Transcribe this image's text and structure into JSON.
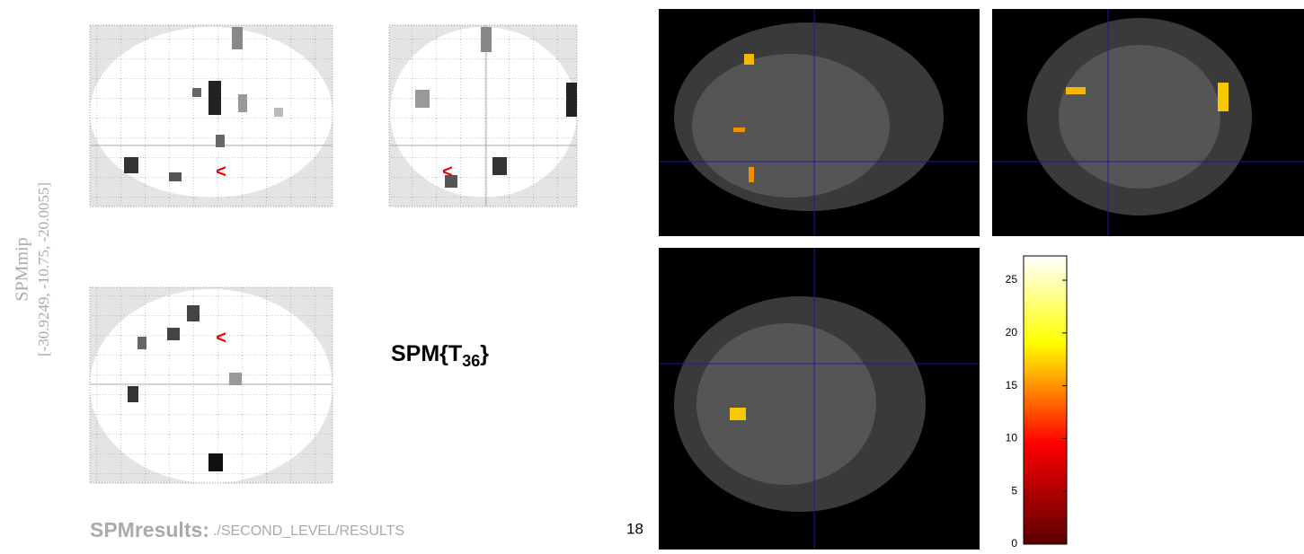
{
  "mip_label": {
    "title": "SPMmip",
    "coordinates": "[-30.9249, -10.75, -20.0055]"
  },
  "statistic": {
    "prefix": "SPM{T",
    "subscript": "36",
    "suffix": "}"
  },
  "results": {
    "label": "SPMresults:",
    "path": "./SECOND_LEVEL/RESULTS"
  },
  "page_number": "18",
  "colorbar": {
    "lim": [
      0,
      27.3
    ],
    "ticks": [
      0,
      5,
      10,
      15,
      20,
      25
    ]
  }
}
